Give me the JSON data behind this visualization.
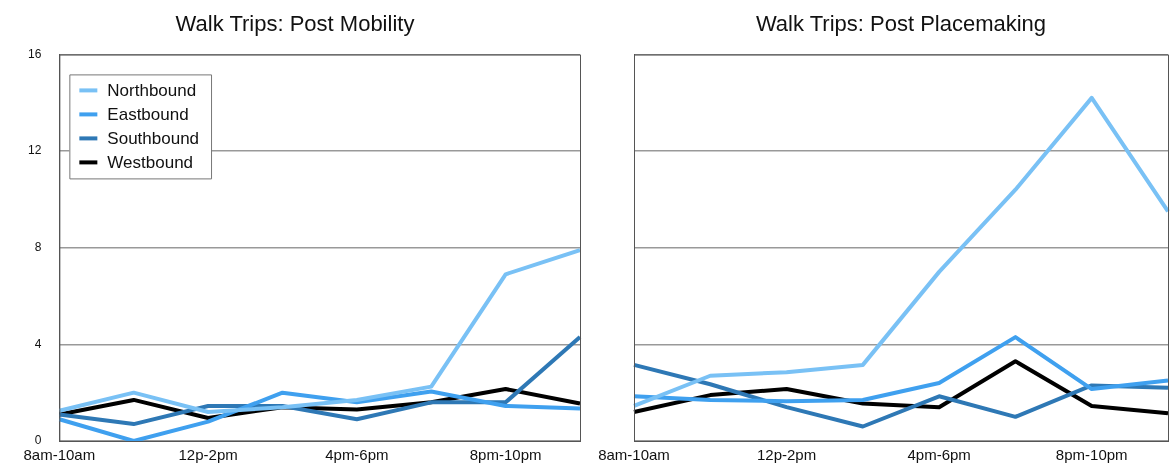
{
  "chart_data": [
    {
      "type": "line",
      "title": "Walk Trips: Post Mobility",
      "categories": [
        "8am-10am",
        null,
        "12p-2pm",
        null,
        "4pm-6pm",
        null,
        "8pm-10pm",
        null
      ],
      "series": [
        {
          "name": "Northbound",
          "color": "#79c1f5",
          "values": [
            1.25,
            2.0,
            1.2,
            1.4,
            1.7,
            2.25,
            6.9,
            7.9
          ]
        },
        {
          "name": "Eastbound",
          "color": "#3fa0ef",
          "values": [
            0.9,
            0.0,
            0.8,
            2.0,
            1.6,
            2.05,
            1.45,
            1.35
          ]
        },
        {
          "name": "Southbound",
          "color": "#2e78b5",
          "values": [
            1.1,
            0.7,
            1.45,
            1.45,
            0.9,
            1.6,
            1.6,
            4.3
          ]
        },
        {
          "name": "Westbound",
          "color": "#000000",
          "values": [
            1.1,
            1.7,
            0.95,
            1.4,
            1.3,
            1.6,
            2.15,
            1.55
          ]
        }
      ],
      "ylim": [
        0,
        16
      ],
      "yticks": [
        0,
        4,
        8,
        12,
        16
      ],
      "grid": "y",
      "legend": "top left"
    },
    {
      "type": "line",
      "title": "Walk Trips: Post Placemaking",
      "categories": [
        "8am-10am",
        null,
        "12p-2pm",
        null,
        "4pm-6pm",
        null,
        "8pm-10pm",
        null
      ],
      "series": [
        {
          "color": "#79c1f5",
          "values": [
            1.45,
            2.7,
            2.85,
            3.15,
            7.0,
            10.4,
            14.2,
            9.5
          ]
        },
        {
          "color": "#3fa0ef",
          "values": [
            1.85,
            1.7,
            1.65,
            1.7,
            2.4,
            4.3,
            2.15,
            2.5
          ]
        },
        {
          "color": "#2e78b5",
          "values": [
            3.15,
            2.35,
            1.4,
            0.6,
            1.85,
            1.0,
            2.3,
            2.2
          ]
        },
        {
          "color": "#000000",
          "values": [
            1.2,
            1.9,
            2.15,
            1.55,
            1.4,
            3.3,
            1.45,
            1.15
          ]
        }
      ],
      "ylim": [
        0,
        16
      ],
      "yticks": [
        0,
        4,
        8,
        12,
        16
      ],
      "grid": "y",
      "tick_labels": "x"
    }
  ]
}
